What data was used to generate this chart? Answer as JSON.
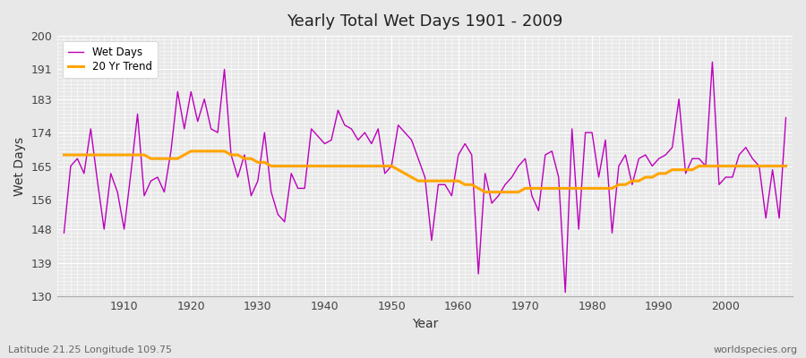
{
  "title": "Yearly Total Wet Days 1901 - 2009",
  "xlabel": "Year",
  "ylabel": "Wet Days",
  "subtitle_left": "Latitude 21.25 Longitude 109.75",
  "subtitle_right": "worldspecies.org",
  "line_color": "#bb00bb",
  "trend_color": "#FFA500",
  "ylim": [
    130,
    200
  ],
  "yticks": [
    130,
    139,
    148,
    156,
    165,
    174,
    183,
    191,
    200
  ],
  "xlim": [
    1900,
    2010
  ],
  "xticks": [
    1910,
    1920,
    1930,
    1940,
    1950,
    1960,
    1970,
    1980,
    1990,
    2000
  ],
  "bg_color": "#e8e8e8",
  "grid_color": "#ffffff",
  "years": [
    1901,
    1902,
    1903,
    1904,
    1905,
    1906,
    1907,
    1908,
    1909,
    1910,
    1911,
    1912,
    1913,
    1914,
    1915,
    1916,
    1917,
    1918,
    1919,
    1920,
    1921,
    1922,
    1923,
    1924,
    1925,
    1926,
    1927,
    1928,
    1929,
    1930,
    1931,
    1932,
    1933,
    1934,
    1935,
    1936,
    1937,
    1938,
    1939,
    1940,
    1941,
    1942,
    1943,
    1944,
    1945,
    1946,
    1947,
    1948,
    1949,
    1950,
    1951,
    1952,
    1953,
    1954,
    1955,
    1956,
    1957,
    1958,
    1959,
    1960,
    1961,
    1962,
    1963,
    1964,
    1965,
    1966,
    1967,
    1968,
    1969,
    1970,
    1971,
    1972,
    1973,
    1974,
    1975,
    1976,
    1977,
    1978,
    1979,
    1980,
    1981,
    1982,
    1983,
    1984,
    1985,
    1986,
    1987,
    1988,
    1989,
    1990,
    1991,
    1992,
    1993,
    1994,
    1995,
    1996,
    1997,
    1998,
    1999,
    2000,
    2001,
    2002,
    2003,
    2004,
    2005,
    2006,
    2007,
    2008,
    2009
  ],
  "wet_days": [
    147,
    165,
    167,
    163,
    175,
    161,
    148,
    163,
    158,
    148,
    163,
    179,
    157,
    161,
    162,
    158,
    169,
    185,
    175,
    185,
    177,
    183,
    175,
    174,
    191,
    168,
    162,
    168,
    157,
    161,
    174,
    158,
    152,
    150,
    163,
    159,
    159,
    175,
    173,
    171,
    172,
    180,
    176,
    175,
    172,
    174,
    171,
    175,
    163,
    165,
    176,
    174,
    172,
    167,
    162,
    145,
    160,
    160,
    157,
    168,
    171,
    168,
    136,
    163,
    155,
    157,
    160,
    162,
    165,
    167,
    157,
    153,
    168,
    169,
    162,
    131,
    175,
    148,
    174,
    174,
    162,
    172,
    147,
    165,
    168,
    160,
    167,
    168,
    165,
    167,
    168,
    170,
    183,
    163,
    167,
    167,
    165,
    193,
    160,
    162,
    162,
    168,
    170,
    167,
    165,
    151,
    164,
    151,
    178
  ],
  "trend": [
    168,
    168,
    168,
    168,
    168,
    168,
    168,
    168,
    168,
    168,
    168,
    168,
    168,
    167,
    167,
    167,
    167,
    167,
    168,
    169,
    169,
    169,
    169,
    169,
    169,
    168,
    168,
    167,
    167,
    166,
    166,
    165,
    165,
    165,
    165,
    165,
    165,
    165,
    165,
    165,
    165,
    165,
    165,
    165,
    165,
    165,
    165,
    165,
    165,
    165,
    164,
    163,
    162,
    161,
    161,
    161,
    161,
    161,
    161,
    161,
    160,
    160,
    159,
    158,
    158,
    158,
    158,
    158,
    158,
    159,
    159,
    159,
    159,
    159,
    159,
    159,
    159,
    159,
    159,
    159,
    159,
    159,
    159,
    160,
    160,
    161,
    161,
    162,
    162,
    163,
    163,
    164,
    164,
    164,
    164,
    165,
    165,
    165,
    165,
    165,
    165,
    165,
    165,
    165,
    165,
    165,
    165,
    165,
    165
  ]
}
